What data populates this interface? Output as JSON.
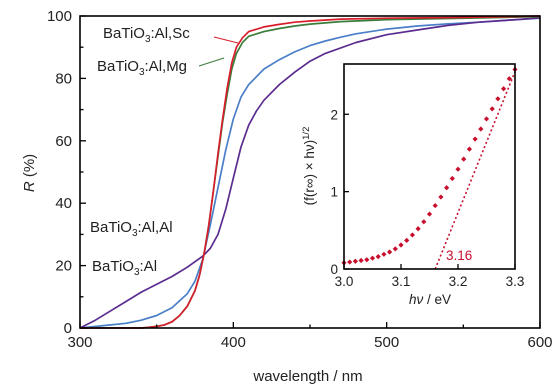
{
  "colors": {
    "BaTiO3_Al_Sc": "#d81e2c",
    "BaTiO3_Al_Mg": "#3a7d3a",
    "BaTiO3_Al_Al": "#5b2c8f",
    "BaTiO3_Al": "#4a7fc8",
    "inset_points": "#c8102e"
  },
  "chart_data": [
    {
      "type": "line",
      "xlabel": "wavelength / nm",
      "ylabel_symbol": "R",
      "ylabel_unit": " (%)",
      "xlim": [
        300,
        600
      ],
      "ylim": [
        0,
        100
      ],
      "x_ticks": [
        "300",
        "400",
        "500",
        "600"
      ],
      "y_ticks": [
        "0",
        "20",
        "40",
        "60",
        "80",
        "100"
      ],
      "series": [
        {
          "key": "BaTiO3_Al_Sc",
          "name_main": "BaTiO",
          "name_sub": "3",
          "name_rest": ":Al,Sc",
          "x": [
            300,
            330,
            340,
            345,
            350,
            355,
            360,
            365,
            370,
            375,
            378,
            381,
            384,
            387,
            390,
            393,
            396,
            399,
            402,
            406,
            410,
            420,
            430,
            440,
            450,
            470,
            500,
            540,
            570,
            600
          ],
          "y": [
            0,
            0,
            0,
            0.2,
            0.5,
            1,
            2,
            4,
            7,
            12,
            17,
            24,
            33,
            44,
            56,
            67,
            77,
            85,
            90,
            93,
            95,
            96.5,
            97.3,
            98,
            98.4,
            99,
            99.3,
            99.5,
            99.7,
            100
          ]
        },
        {
          "key": "BaTiO3_Al_Mg",
          "name_main": "BaTiO",
          "name_sub": "3",
          "name_rest": ":Al,Mg",
          "x": [
            300,
            330,
            340,
            345,
            350,
            355,
            360,
            365,
            370,
            375,
            378,
            381,
            384,
            387,
            390,
            393,
            396,
            399,
            402,
            406,
            410,
            420,
            430,
            440,
            450,
            470,
            500,
            540,
            570,
            600
          ],
          "y": [
            0,
            0,
            0,
            0.2,
            0.5,
            1,
            2,
            4,
            7,
            12,
            17,
            24,
            33,
            44,
            55,
            66,
            75,
            83,
            88,
            91.5,
            93.5,
            95,
            96,
            96.8,
            97.4,
            98.2,
            98.8,
            99.2,
            99.5,
            99.8
          ]
        },
        {
          "key": "BaTiO3_Al_Al",
          "name_main": "BaTiO",
          "name_sub": "3",
          "name_rest": ":Al,Al",
          "x": [
            300,
            310,
            320,
            330,
            340,
            350,
            360,
            370,
            380,
            385,
            390,
            395,
            400,
            405,
            410,
            415,
            420,
            430,
            440,
            450,
            460,
            480,
            500,
            520,
            540,
            560,
            580,
            600
          ],
          "y": [
            0,
            2.5,
            5.5,
            8.5,
            11.5,
            14,
            16.5,
            19.5,
            23,
            25.5,
            30,
            38,
            48,
            58,
            65,
            69.5,
            73,
            78,
            82,
            85.5,
            88,
            91.5,
            94,
            95.5,
            97,
            98,
            98.7,
            99.4
          ]
        },
        {
          "key": "BaTiO3_Al",
          "name_main": "BaTiO",
          "name_sub": "3",
          "name_rest": ":Al",
          "x": [
            300,
            320,
            330,
            340,
            350,
            360,
            370,
            375,
            380,
            385,
            390,
            395,
            400,
            405,
            410,
            420,
            430,
            440,
            450,
            460,
            470,
            480,
            500,
            520,
            540,
            560,
            580,
            600
          ],
          "y": [
            0,
            1,
            1.5,
            2.5,
            4,
            6.5,
            11,
            15,
            22,
            33,
            45,
            57,
            67,
            74,
            78,
            83,
            86,
            88.5,
            90.5,
            92,
            93.2,
            94.3,
            95.8,
            96.8,
            97.5,
            98,
            98.7,
            99.3
          ]
        }
      ]
    },
    {
      "type": "scatter",
      "xlabel_main": "hν",
      "xlabel_rest": " / eV",
      "ylabel": "(f(r∞) × hν)",
      "ylabel_sup": "1/2",
      "xlim": [
        3.0,
        3.3
      ],
      "ylim": [
        0,
        2.65
      ],
      "x_ticks": [
        "3.0",
        "3.1",
        "3.2",
        "3.3"
      ],
      "y_ticks": [
        "0",
        "1",
        "2"
      ],
      "annotation": "3.16",
      "fit_line": {
        "x": [
          3.16,
          3.3
        ],
        "y": [
          0,
          2.55
        ]
      },
      "points": {
        "x": [
          3.0,
          3.01,
          3.02,
          3.03,
          3.04,
          3.05,
          3.06,
          3.07,
          3.08,
          3.09,
          3.1,
          3.11,
          3.12,
          3.13,
          3.14,
          3.15,
          3.16,
          3.17,
          3.18,
          3.19,
          3.2,
          3.21,
          3.22,
          3.23,
          3.24,
          3.25,
          3.26,
          3.27,
          3.28,
          3.29,
          3.3
        ],
        "y": [
          0.08,
          0.09,
          0.1,
          0.11,
          0.12,
          0.14,
          0.16,
          0.19,
          0.22,
          0.26,
          0.31,
          0.37,
          0.44,
          0.52,
          0.61,
          0.71,
          0.82,
          0.93,
          1.05,
          1.17,
          1.29,
          1.42,
          1.55,
          1.68,
          1.81,
          1.94,
          2.07,
          2.2,
          2.33,
          2.46,
          2.58
        ]
      }
    }
  ]
}
